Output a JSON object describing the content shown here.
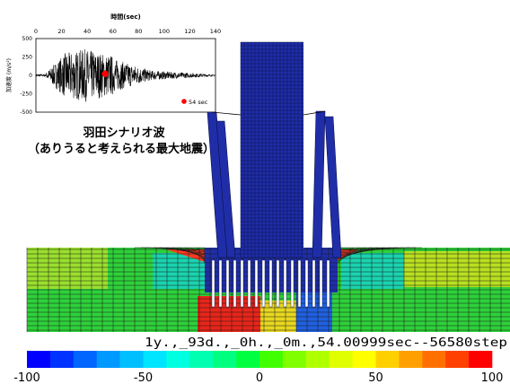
{
  "inset_chart": {
    "top_axis_label": "時間(sec)",
    "x_ticks": [
      "0",
      "20",
      "40",
      "60",
      "80",
      "100",
      "120",
      "140"
    ],
    "y_ticks": [
      "500",
      "250",
      "0",
      "-250",
      "-500"
    ],
    "y_label": "加速度 (m/s²)",
    "marker_time": 54,
    "marker_label": "54 sec",
    "marker_color": "#ff0000",
    "signal_color": "#000000",
    "xlim": [
      0,
      140
    ],
    "ylim": [
      -500,
      500
    ]
  },
  "caption": {
    "line1": "羽田シナリオ波",
    "line2": "（ありうると考えられる最大地震）"
  },
  "model": {
    "time_readout": "1y.,_93d.,_0h.,_0m.,54.00999sec--56580step",
    "tower_color": "#1f2ea8",
    "mesh_color": "#1a1a1a"
  },
  "colorbar": {
    "tick_labels": [
      "-100",
      "-50",
      "0",
      "50",
      "100"
    ],
    "min": -100,
    "max": 100,
    "colors": [
      "#0000ff",
      "#0033ff",
      "#0066ff",
      "#0099ff",
      "#00bfff",
      "#00e5ff",
      "#00ffe0",
      "#00ffb0",
      "#00ff80",
      "#00ff40",
      "#40ff00",
      "#80ff00",
      "#b0ff00",
      "#e0ff00",
      "#ffff00",
      "#ffd000",
      "#ffa000",
      "#ff7000",
      "#ff4000",
      "#ff0000"
    ]
  }
}
